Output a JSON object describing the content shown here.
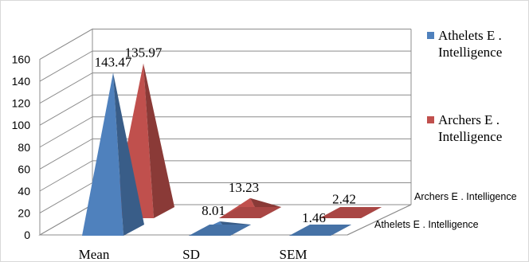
{
  "chart_data": {
    "type": "3d-pyramid-bar",
    "title": "",
    "xlabel": "",
    "ylabel": "",
    "ylim": [
      0,
      160
    ],
    "yticks": [
      0,
      20,
      40,
      60,
      80,
      100,
      120,
      140,
      160
    ],
    "categories": [
      "Mean",
      "SD",
      "SEM"
    ],
    "series": [
      {
        "name": "Athelets E . Intelligence",
        "values": [
          143.47,
          8.01,
          1.46
        ],
        "color": "#4f81bd",
        "label": [
          "143.47",
          "8.01",
          "1.46"
        ]
      },
      {
        "name": "Archers E . Intelligence",
        "values": [
          135.97,
          13.23,
          2.42
        ],
        "color": "#c0504d",
        "label": [
          "135.97",
          "13.23",
          "2.42"
        ]
      }
    ],
    "depth_axis_labels": [
      "Athelets E . Intelligence",
      "Archers E . Intelligence"
    ],
    "legend": {
      "position": "right",
      "entries": [
        {
          "line1": "Athelets E .",
          "line2": "Intelligence",
          "color": "#4f81bd"
        },
        {
          "line1": "Archers E .",
          "line2": "Intelligence",
          "color": "#c0504d"
        }
      ]
    },
    "grid": true
  }
}
